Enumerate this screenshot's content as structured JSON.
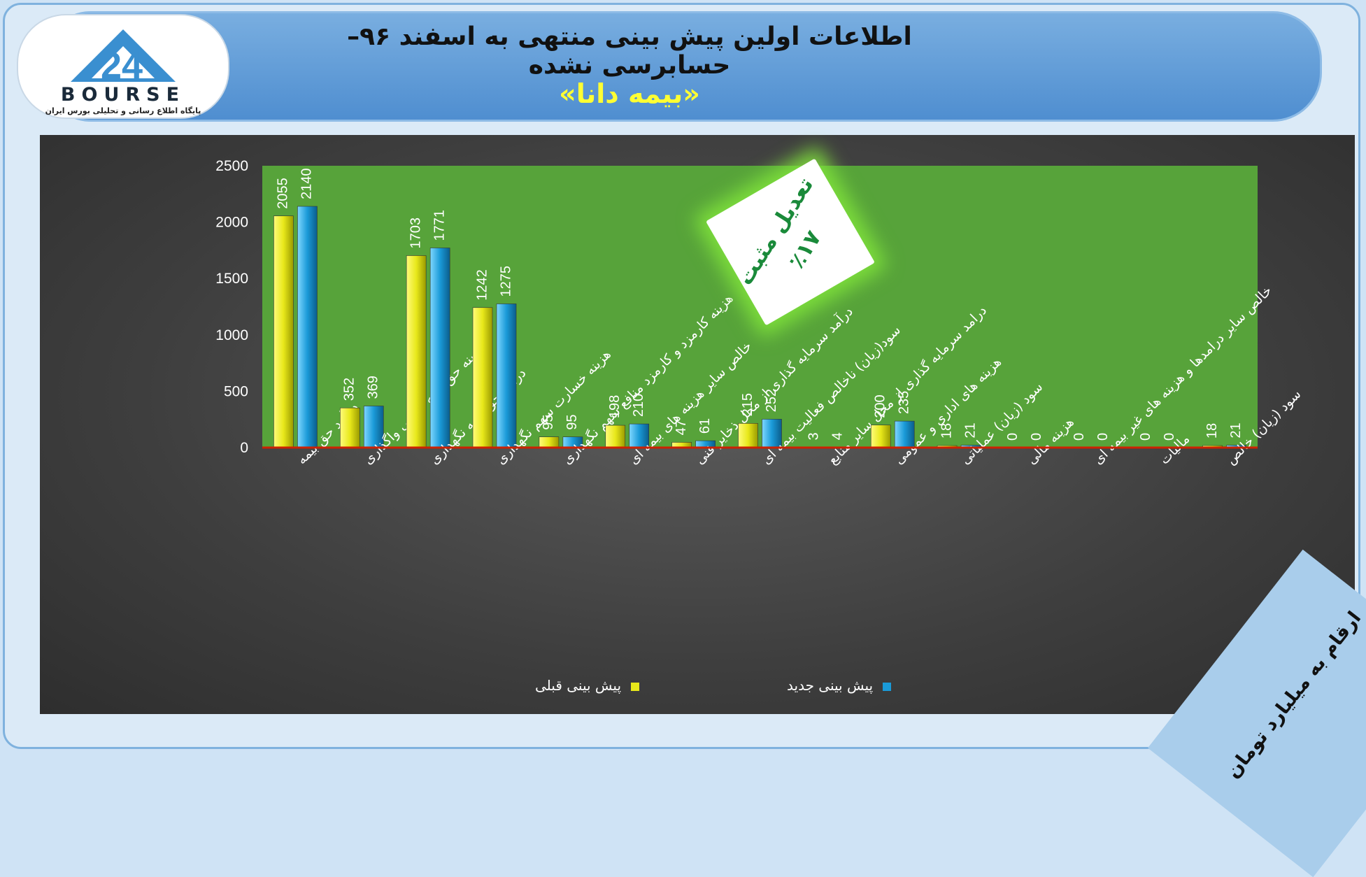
{
  "header": {
    "title": "اطلاعات اولین پیش بینی منتهی به اسفند ۹۶– حسابرسی نشده",
    "subtitle": "«بیمه دانا»"
  },
  "logo": {
    "word": "BOURSE",
    "tagline": "پایگاه اطلاع رسانی و تحلیلی بورس ایران"
  },
  "callout": {
    "line1": "تعدیل مثبت",
    "line2": "٪۱۷"
  },
  "unit_note": "ارقام به میلیارد تومان",
  "colors": {
    "series_prev": "#e8e81a",
    "series_new": "#1a9ad8",
    "plot_area": "#57a33a",
    "baseline": "#cc2200"
  },
  "chart_data": {
    "type": "bar",
    "categories": [
      "درآمد حق بیمه",
      "هزینه حق بیمه اتکایی واگذاری",
      "درآمد حق بیمه نگهداری",
      "هزینه خسارت سهم نگهداری",
      "هزینه کارمزد و کارمزد منافع سهم نگهداری",
      "خالص سایر هزینه های بیمه ای",
      "درآمد سرمایه گذاری از محل ذخایر فنی",
      "سود(زیان) ناخالص فعالیت بیمه ای",
      "درامد سرمایه گذاری از محل سایر منابع",
      "هزینه های اداری و عمومی",
      "سود (زیان) عملیاتی",
      "هزینه مالی",
      "خالص سایر درامدها و هزینه های غیر بیمه ای",
      "مالیات",
      "سود (زیان) خالص"
    ],
    "series": [
      {
        "name": "پیش بینی قبلی",
        "values": [
          2055,
          352,
          1703,
          1242,
          95,
          198,
          47,
          215,
          3,
          200,
          18,
          0,
          0,
          0,
          18
        ]
      },
      {
        "name": "پیش بینی جدید",
        "values": [
          2140,
          369,
          1771,
          1275,
          95,
          210,
          61,
          252,
          4,
          235,
          21,
          0,
          0,
          0,
          21
        ]
      }
    ],
    "yticks": [
      0,
      500,
      1000,
      1500,
      2000,
      2500
    ],
    "ylim": [
      0,
      2500
    ],
    "grid": false,
    "legend": "bottom"
  }
}
